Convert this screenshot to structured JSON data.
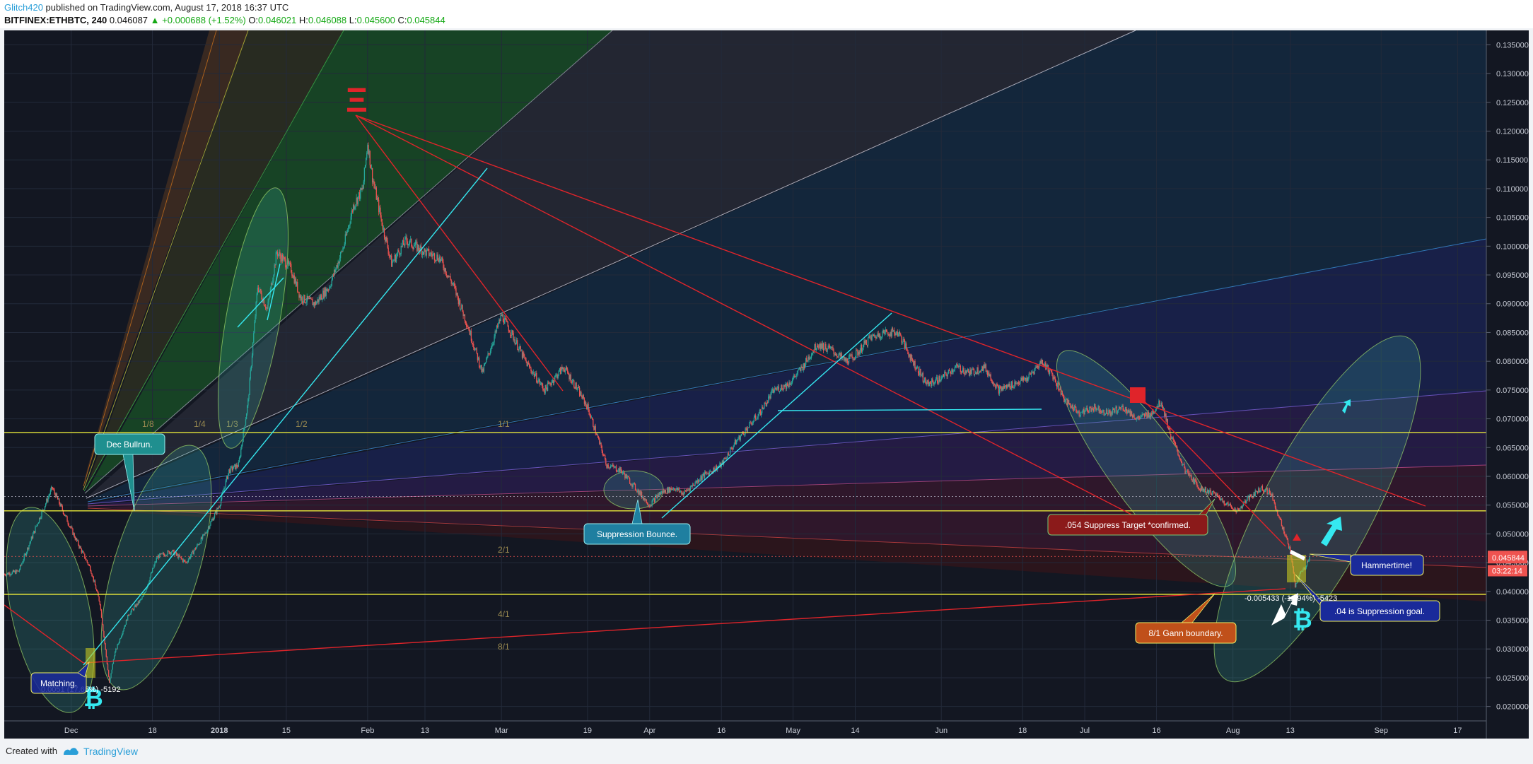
{
  "header": {
    "author": "Glitch420",
    "published_text": "published on TradingView.com, August 17, 2018 16:37 UTC",
    "symbol": "BITFINEX:ETHBTC, 240",
    "last": "0.046087",
    "change": "▲ +0.000688 (+1.52%)",
    "o_label": "O:",
    "o_val": "0.046021",
    "h_label": "H:",
    "h_val": "0.046088",
    "l_label": "L:",
    "l_val": "0.045600",
    "c_label": "C:",
    "c_val": "0.045844"
  },
  "footer": {
    "created": "Created with",
    "brand": "TradingView"
  },
  "colors": {
    "bg": "#131722",
    "grid": "#232a3a",
    "up": "#26a69a",
    "down": "#ef5350",
    "yellow": "#e8e83a",
    "cyan": "#35e8f0",
    "red": "#e0242a"
  },
  "chart_data": {
    "type": "candlestick",
    "ylim": [
      0.0175,
      0.1375
    ],
    "xlim": [
      "2017-11-17",
      "2018-09-23"
    ],
    "x_ticks": [
      {
        "label": "Dec",
        "date": "2017-12-01"
      },
      {
        "label": "18",
        "date": "2017-12-18"
      },
      {
        "label": "2018",
        "date": "2018-01-01"
      },
      {
        "label": "15",
        "date": "2018-01-15"
      },
      {
        "label": "Feb",
        "date": "2018-02-01"
      },
      {
        "label": "13",
        "date": "2018-02-13"
      },
      {
        "label": "Mar",
        "date": "2018-03-01"
      },
      {
        "label": "19",
        "date": "2018-03-19"
      },
      {
        "label": "Apr",
        "date": "2018-04-01"
      },
      {
        "label": "16",
        "date": "2018-04-16"
      },
      {
        "label": "May",
        "date": "2018-05-01"
      },
      {
        "label": "14",
        "date": "2018-05-14"
      },
      {
        "label": "Jun",
        "date": "2018-06-01"
      },
      {
        "label": "18",
        "date": "2018-06-18"
      },
      {
        "label": "Jul",
        "date": "2018-07-01"
      },
      {
        "label": "16",
        "date": "2018-07-16"
      },
      {
        "label": "Aug",
        "date": "2018-08-01"
      },
      {
        "label": "13",
        "date": "2018-08-13"
      },
      {
        "label": "Sep",
        "date": "2018-09-01"
      },
      {
        "label": "17",
        "date": "2018-09-17"
      }
    ],
    "y_ticks": [
      "0.135000",
      "0.130000",
      "0.125000",
      "0.120000",
      "0.115000",
      "0.110000",
      "0.105000",
      "0.100000",
      "0.095000",
      "0.090000",
      "0.085000",
      "0.080000",
      "0.075000",
      "0.070000",
      "0.065000",
      "0.060000",
      "0.055000",
      "0.050000",
      "0.045000",
      "0.040000",
      "0.035000",
      "0.030000",
      "0.025000",
      "0.020000"
    ],
    "y_tick_values": [
      0.135,
      0.13,
      0.125,
      0.12,
      0.115,
      0.11,
      0.105,
      0.1,
      0.095,
      0.09,
      0.085,
      0.08,
      0.075,
      0.07,
      0.065,
      0.06,
      0.055,
      0.05,
      0.045,
      0.04,
      0.035,
      0.03,
      0.025,
      0.02
    ],
    "price_path": [
      [
        "2017-11-17",
        0.043
      ],
      [
        "2017-11-20",
        0.0435
      ],
      [
        "2017-11-24",
        0.052
      ],
      [
        "2017-11-27",
        0.058
      ],
      [
        "2017-11-29",
        0.0545
      ],
      [
        "2017-12-02",
        0.049
      ],
      [
        "2017-12-05",
        0.044
      ],
      [
        "2017-12-07",
        0.038
      ],
      [
        "2017-12-09",
        0.024
      ],
      [
        "2017-12-10",
        0.029
      ],
      [
        "2017-12-13",
        0.036
      ],
      [
        "2017-12-16",
        0.039
      ],
      [
        "2017-12-19",
        0.046
      ],
      [
        "2017-12-22",
        0.047
      ],
      [
        "2017-12-25",
        0.045
      ],
      [
        "2017-12-29",
        0.05
      ],
      [
        "2018-01-01",
        0.055
      ],
      [
        "2018-01-03",
        0.061
      ],
      [
        "2018-01-05",
        0.062
      ],
      [
        "2018-01-07",
        0.073
      ],
      [
        "2018-01-09",
        0.093
      ],
      [
        "2018-01-11",
        0.089
      ],
      [
        "2018-01-13",
        0.099
      ],
      [
        "2018-01-16",
        0.096
      ],
      [
        "2018-01-18",
        0.091
      ],
      [
        "2018-01-21",
        0.09
      ],
      [
        "2018-01-24",
        0.093
      ],
      [
        "2018-01-27",
        0.1
      ],
      [
        "2018-01-29",
        0.107
      ],
      [
        "2018-01-31",
        0.11
      ],
      [
        "2018-02-01",
        0.118
      ],
      [
        "2018-02-02",
        0.112
      ],
      [
        "2018-02-04",
        0.104
      ],
      [
        "2018-02-06",
        0.097
      ],
      [
        "2018-02-09",
        0.101
      ],
      [
        "2018-02-13",
        0.099
      ],
      [
        "2018-02-16",
        0.098
      ],
      [
        "2018-02-19",
        0.093
      ],
      [
        "2018-02-22",
        0.086
      ],
      [
        "2018-02-25",
        0.078
      ],
      [
        "2018-02-27",
        0.083
      ],
      [
        "2018-03-01",
        0.088
      ],
      [
        "2018-03-03",
        0.085
      ],
      [
        "2018-03-06",
        0.08
      ],
      [
        "2018-03-10",
        0.075
      ],
      [
        "2018-03-14",
        0.079
      ],
      [
        "2018-03-17",
        0.075
      ],
      [
        "2018-03-19",
        0.072
      ],
      [
        "2018-03-21",
        0.067
      ],
      [
        "2018-03-23",
        0.062
      ],
      [
        "2018-03-26",
        0.061
      ],
      [
        "2018-03-29",
        0.058
      ],
      [
        "2018-04-01",
        0.055
      ],
      [
        "2018-04-03",
        0.057
      ],
      [
        "2018-04-06",
        0.058
      ],
      [
        "2018-04-08",
        0.057
      ],
      [
        "2018-04-12",
        0.06
      ],
      [
        "2018-04-16",
        0.062
      ],
      [
        "2018-04-19",
        0.066
      ],
      [
        "2018-04-22",
        0.069
      ],
      [
        "2018-04-24",
        0.071
      ],
      [
        "2018-04-27",
        0.075
      ],
      [
        "2018-04-30",
        0.076
      ],
      [
        "2018-05-03",
        0.079
      ],
      [
        "2018-05-06",
        0.083
      ],
      [
        "2018-05-09",
        0.082
      ],
      [
        "2018-05-12",
        0.08
      ],
      [
        "2018-05-14",
        0.081
      ],
      [
        "2018-05-17",
        0.084
      ],
      [
        "2018-05-20",
        0.085
      ],
      [
        "2018-05-23",
        0.085
      ],
      [
        "2018-05-26",
        0.08
      ],
      [
        "2018-05-29",
        0.076
      ],
      [
        "2018-06-01",
        0.077
      ],
      [
        "2018-06-04",
        0.079
      ],
      [
        "2018-06-07",
        0.078
      ],
      [
        "2018-06-10",
        0.079
      ],
      [
        "2018-06-13",
        0.075
      ],
      [
        "2018-06-16",
        0.076
      ],
      [
        "2018-06-19",
        0.077
      ],
      [
        "2018-06-22",
        0.08
      ],
      [
        "2018-06-24",
        0.078
      ],
      [
        "2018-06-27",
        0.073
      ],
      [
        "2018-06-30",
        0.071
      ],
      [
        "2018-07-03",
        0.072
      ],
      [
        "2018-07-06",
        0.071
      ],
      [
        "2018-07-09",
        0.072
      ],
      [
        "2018-07-12",
        0.07
      ],
      [
        "2018-07-15",
        0.071
      ],
      [
        "2018-07-17",
        0.073
      ],
      [
        "2018-07-19",
        0.067
      ],
      [
        "2018-07-22",
        0.061
      ],
      [
        "2018-07-25",
        0.058
      ],
      [
        "2018-07-28",
        0.057
      ],
      [
        "2018-07-31",
        0.055
      ],
      [
        "2018-08-02",
        0.054
      ],
      [
        "2018-08-04",
        0.056
      ],
      [
        "2018-08-07",
        0.058
      ],
      [
        "2018-08-09",
        0.057
      ],
      [
        "2018-08-11",
        0.052
      ],
      [
        "2018-08-13",
        0.047
      ],
      [
        "2018-08-14",
        0.041
      ],
      [
        "2018-08-15",
        0.043
      ],
      [
        "2018-08-16",
        0.044
      ],
      [
        "2018-08-17",
        0.046087
      ]
    ],
    "horizontal_lines": [
      {
        "price": 0.0676,
        "color": "#e8e83a"
      },
      {
        "price": 0.054,
        "color": "#e8e83a"
      },
      {
        "price": 0.0395,
        "color": "#e8e83a"
      }
    ],
    "price_labels": [
      {
        "text": "0.046087",
        "value": 0.046087,
        "color": "#ef5350"
      },
      {
        "text": "0.045844",
        "value": 0.045844,
        "color": "#ef5350"
      },
      {
        "text": "03:22:14",
        "value": 0.0436,
        "color": "#ef5350"
      }
    ],
    "gann_labels": [
      "1/8",
      "1/4",
      "1/3",
      "1/2",
      "1/1",
      "2/1",
      "4/1",
      "8/1"
    ],
    "annotations": [
      {
        "text": "Dec Bullrun.",
        "color": "#1f8f8f"
      },
      {
        "text": "Suppression Bounce.",
        "color": "#1f7fa0"
      },
      {
        "text": ".054 Suppress Target *confirmed.",
        "color": "#8b1a1a"
      },
      {
        "text": "Hammertime!",
        "color": "#1a2a9a"
      },
      {
        "text": ".04 is Suppression goal.",
        "color": "#1a2a9a"
      },
      {
        "text": "8/1 Gann boundary.",
        "color": "#c0501a"
      },
      {
        "text": "Matching.",
        "color": "#1a2a9a"
      }
    ],
    "measure_labels": [
      "-0.005433 (-11.94%) -5423",
      "0.0051 (17.65%) -5192"
    ]
  }
}
